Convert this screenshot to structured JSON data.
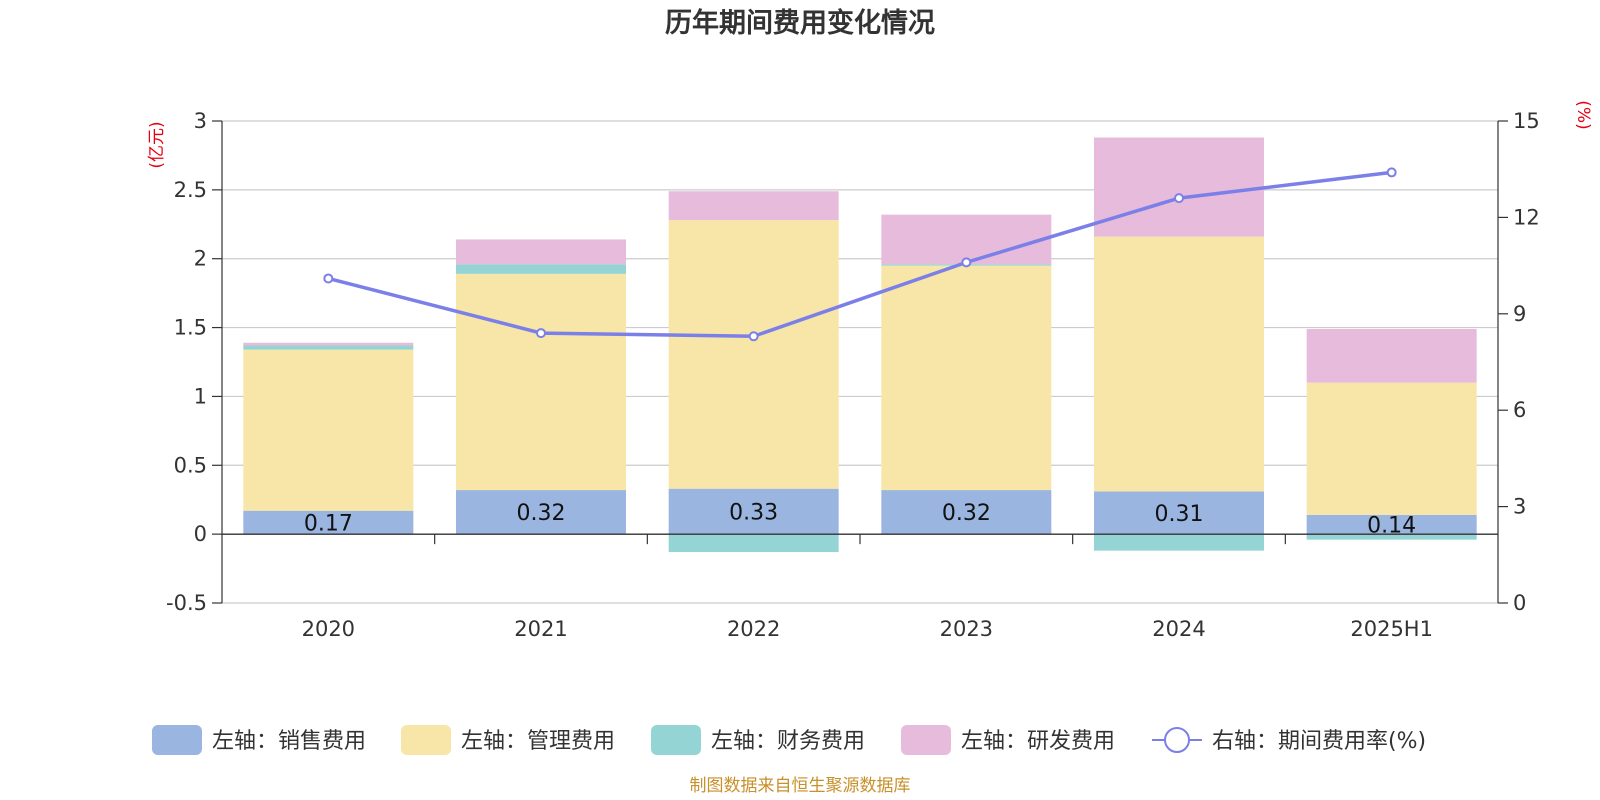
{
  "chart_data": {
    "type": "bar",
    "title": "历年期间费用变化情况",
    "categories": [
      "2020",
      "2021",
      "2022",
      "2023",
      "2024",
      "2025H1"
    ],
    "left_axis": {
      "unit": "(亿元)",
      "ylim": [
        -0.5,
        3
      ],
      "ticks": [
        "-0.5",
        "0",
        "0.5",
        "1",
        "1.5",
        "2",
        "2.5",
        "3"
      ]
    },
    "right_axis": {
      "unit": "(%)",
      "ylim": [
        0,
        15
      ],
      "ticks": [
        "0",
        "3",
        "6",
        "9",
        "12",
        "15"
      ]
    },
    "series": [
      {
        "name": "左轴：销售费用",
        "kind": "bar",
        "axis": "left",
        "color": "#9bb5e1",
        "values": [
          0.17,
          0.32,
          0.33,
          0.32,
          0.31,
          0.14
        ],
        "labels": [
          "0.17",
          "0.32",
          "0.33",
          "0.32",
          "0.31",
          "0.14"
        ]
      },
      {
        "name": "左轴：管理费用",
        "kind": "bar",
        "axis": "left",
        "color": "#f8e6a8",
        "values": [
          1.17,
          1.57,
          1.95,
          1.63,
          1.85,
          0.96
        ]
      },
      {
        "name": "左轴：财务费用",
        "kind": "bar",
        "axis": "left",
        "color": "#95d4d5",
        "values": [
          0.03,
          0.07,
          -0.13,
          0.01,
          -0.12,
          -0.04
        ]
      },
      {
        "name": "左轴：研发费用",
        "kind": "bar",
        "axis": "left",
        "color": "#e7bbdb",
        "values": [
          0.02,
          0.18,
          0.21,
          0.36,
          0.72,
          0.39
        ]
      },
      {
        "name": "右轴：期间费用率(%)",
        "kind": "line",
        "axis": "right",
        "color": "#7b7fe8",
        "values": [
          10.1,
          8.4,
          8.3,
          10.6,
          12.6,
          13.4
        ]
      }
    ],
    "grid": true,
    "legend_position": "bottom"
  },
  "source": "制图数据来自恒生聚源数据库"
}
